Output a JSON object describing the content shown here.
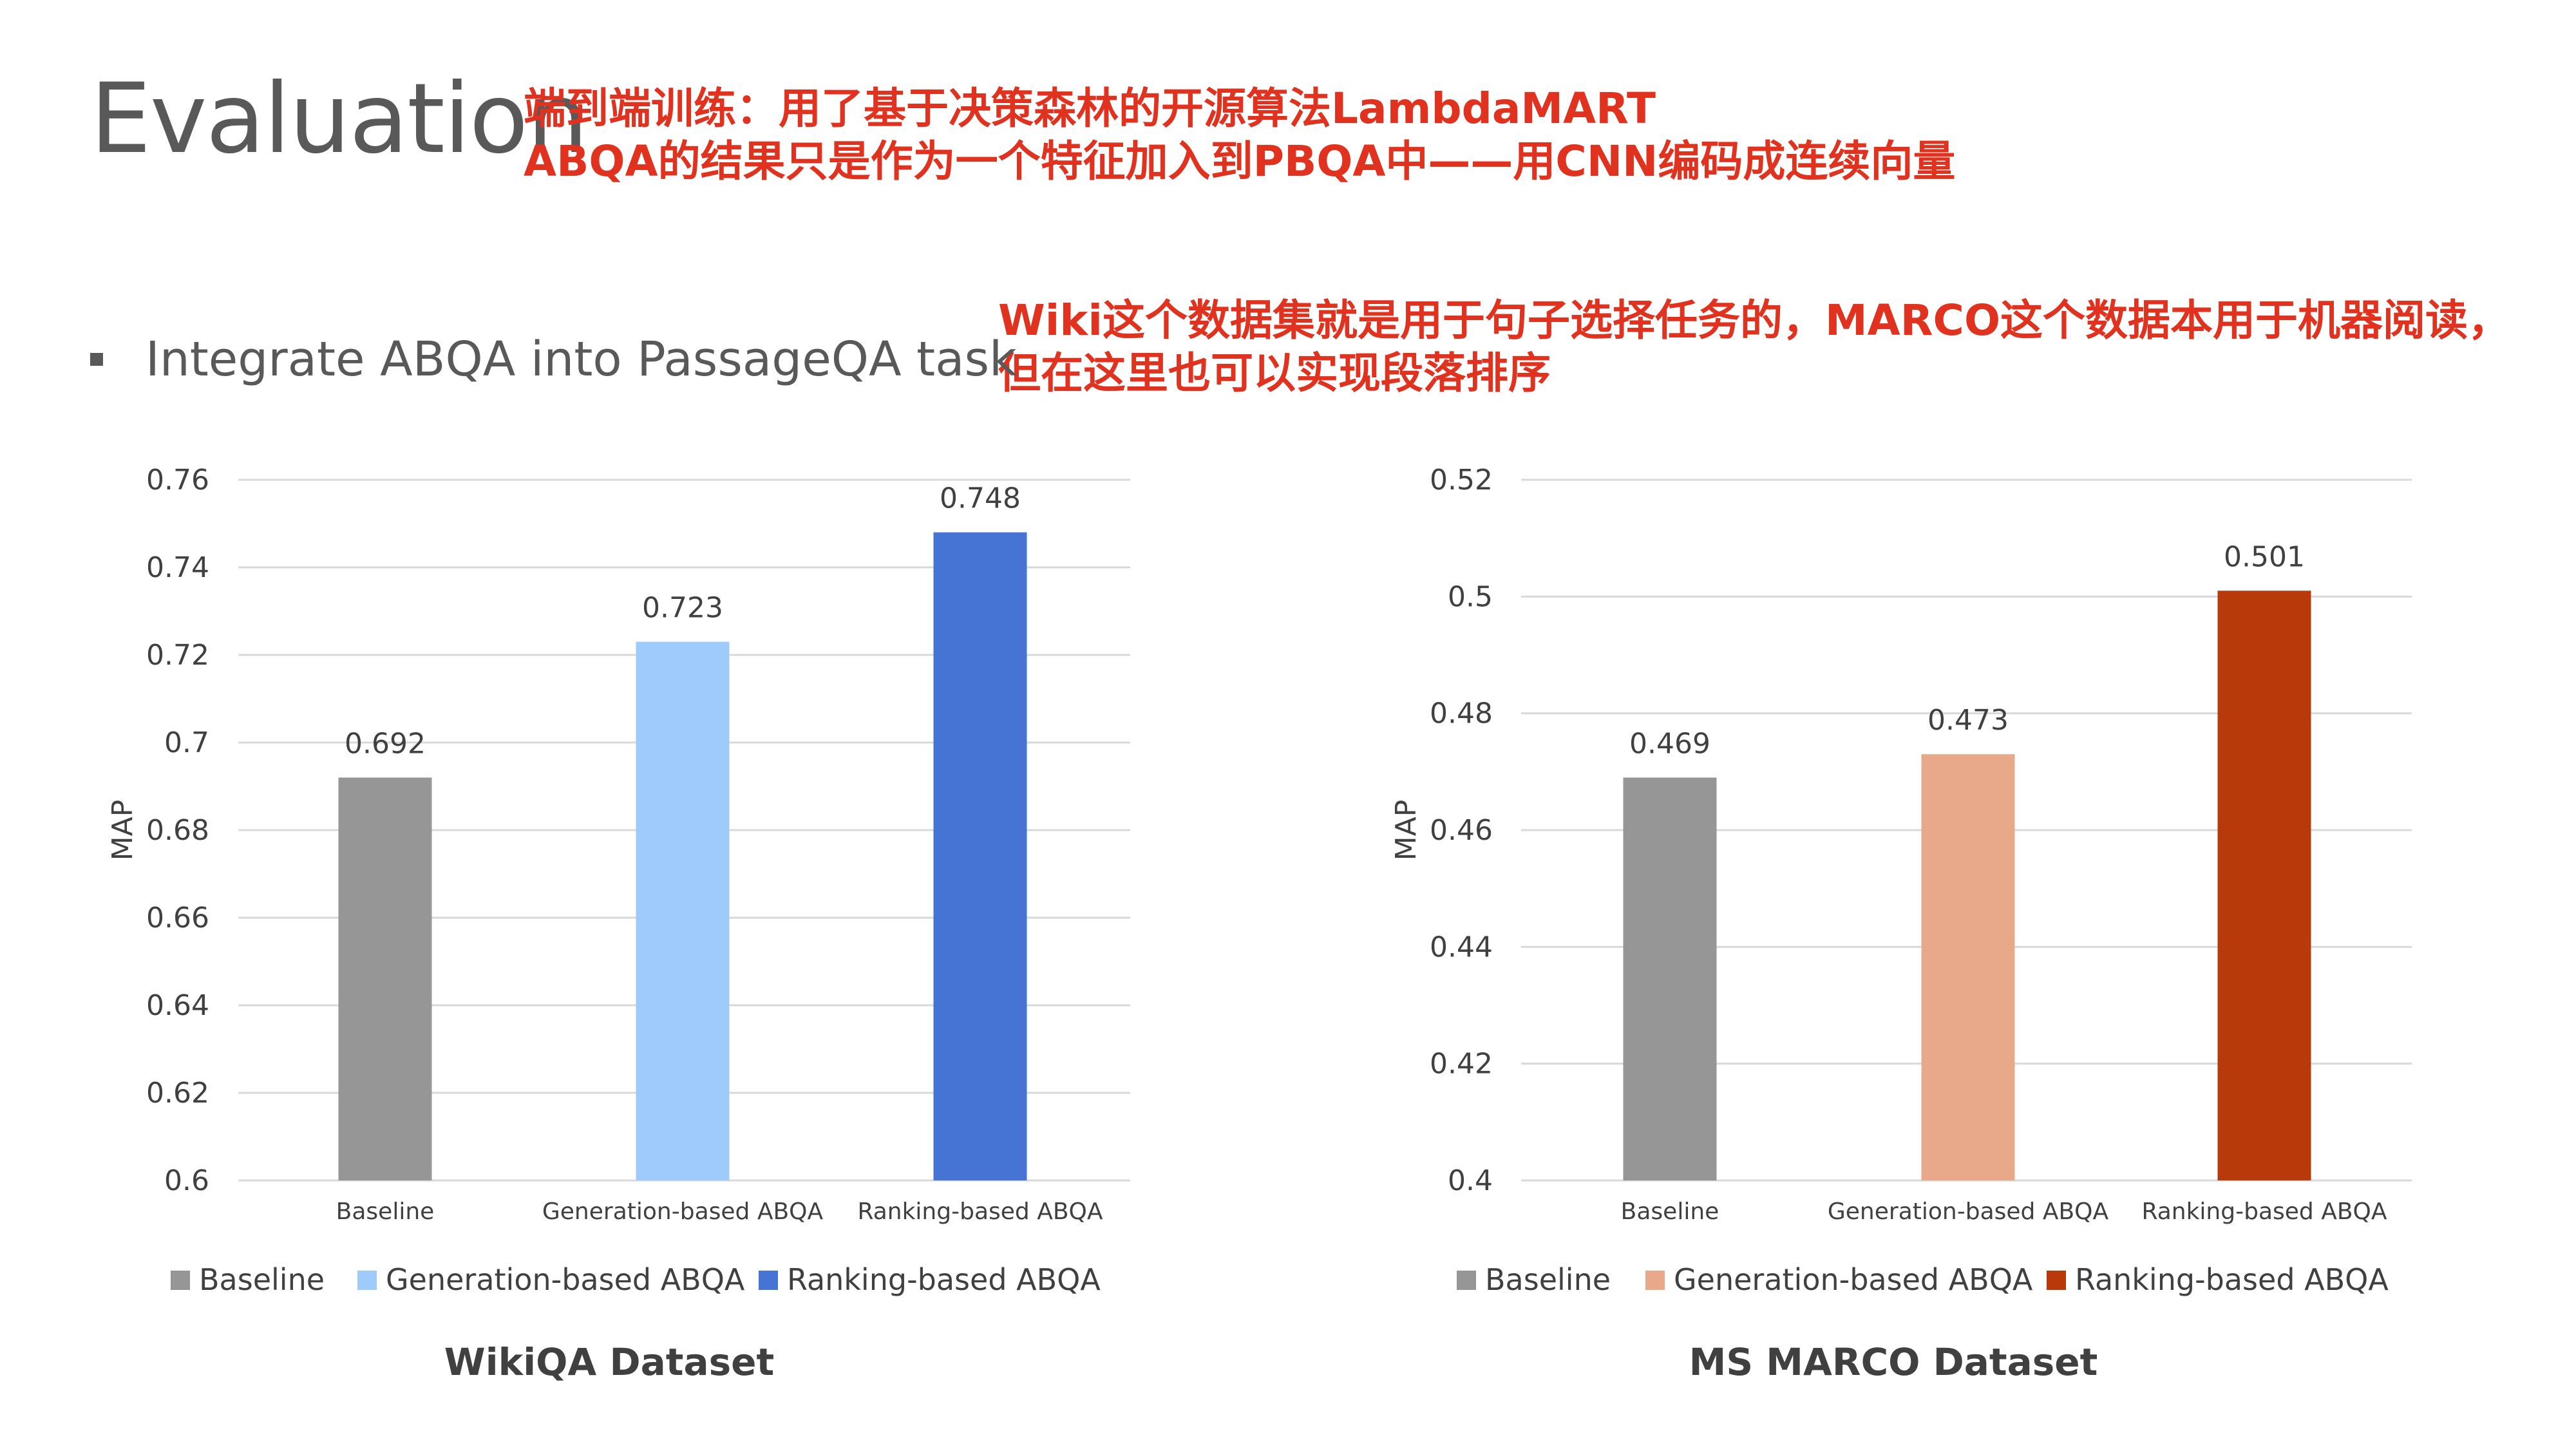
{
  "slide": {
    "title": "Evaluation",
    "annotation_top": [
      "端到端训练：用了基于决策森林的开源算法LambdaMART",
      "ABQA的结果只是作为一个特征加入到PBQA中——用CNN编码成连续向量"
    ],
    "annotation_mid": [
      "Wiki这个数据集就是用于句子选择任务的，MARCO这个数据本用于机器阅读，",
      "但在这里也可以实现段落排序"
    ],
    "bullet": "Integrate ABQA into PassageQA task"
  },
  "chart_data": [
    {
      "type": "bar",
      "title": "WikiQA Dataset",
      "ylabel": "MAP",
      "categories": [
        "Baseline",
        "Generation-based  ABQA",
        "Ranking-based ABQA"
      ],
      "values": [
        0.692,
        0.723,
        0.748
      ],
      "data_labels": [
        "0.692",
        "0.723",
        "0.748"
      ],
      "colors": [
        "#969696",
        "#9fcafc",
        "#4574d4"
      ],
      "legend": [
        "Baseline",
        "Generation-based ABQA",
        "Ranking-based ABQA"
      ],
      "legend_position": "bottom",
      "ylim": [
        0.6,
        0.76
      ],
      "yticks": [
        "0.6",
        "0.62",
        "0.64",
        "0.66",
        "0.68",
        "0.7",
        "0.72",
        "0.74",
        "0.76"
      ],
      "grid": true
    },
    {
      "type": "bar",
      "title": "MS MARCO Dataset",
      "ylabel": "MAP",
      "categories": [
        "Baseline",
        "Generation-based  ABQA",
        "Ranking-based ABQA"
      ],
      "values": [
        0.469,
        0.473,
        0.501
      ],
      "data_labels": [
        "0.469",
        "0.473",
        "0.501"
      ],
      "colors": [
        "#969696",
        "#e8a98a",
        "#b83a0b"
      ],
      "legend": [
        "Baseline",
        "Generation-based ABQA",
        "Ranking-based ABQA"
      ],
      "legend_position": "bottom",
      "ylim": [
        0.4,
        0.52
      ],
      "yticks": [
        "0.4",
        "0.42",
        "0.44",
        "0.46",
        "0.48",
        "0.5",
        "0.52"
      ],
      "grid": true
    }
  ]
}
